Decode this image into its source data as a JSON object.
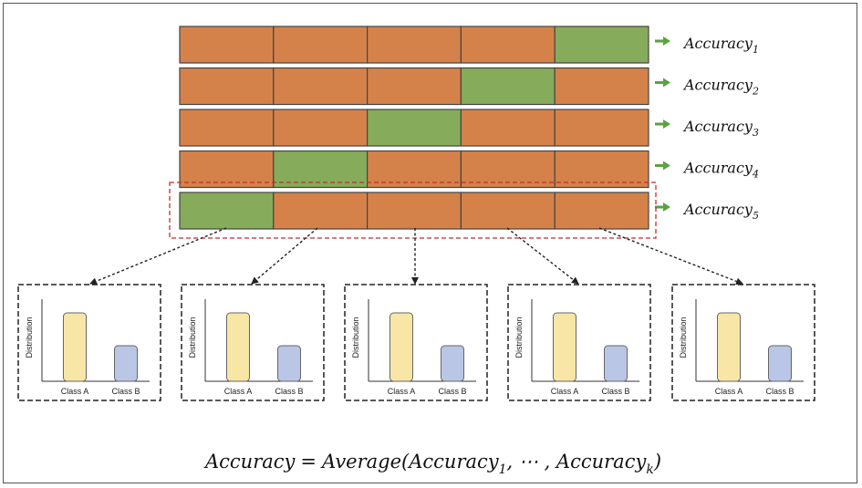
{
  "folds": [
    {
      "label": "Accuracy",
      "subscript": "1",
      "validation_index": 4
    },
    {
      "label": "Accuracy",
      "subscript": "2",
      "validation_index": 3
    },
    {
      "label": "Accuracy",
      "subscript": "3",
      "validation_index": 2
    },
    {
      "label": "Accuracy",
      "subscript": "4",
      "validation_index": 1
    },
    {
      "label": "Accuracy",
      "subscript": "5",
      "validation_index": 0
    }
  ],
  "segments_per_fold": 5,
  "highlighted_fold": 4,
  "colors": {
    "train": "#d5824a",
    "validation": "#86ab5a",
    "segment_border": "#444444",
    "arrow": "#5aa33e",
    "highlight_box": "#cc2a2a",
    "class_a": "#f7e6a6",
    "class_b": "#b9c6e6"
  },
  "distribution_panels": [
    {
      "ylabel": "Distribution",
      "classes": [
        "Class A",
        "Class B"
      ],
      "values": [
        1.0,
        0.52
      ]
    },
    {
      "ylabel": "Distribution",
      "classes": [
        "Class A",
        "Class B"
      ],
      "values": [
        1.0,
        0.52
      ]
    },
    {
      "ylabel": "Distribution",
      "classes": [
        "Class A",
        "Class B"
      ],
      "values": [
        1.0,
        0.52
      ]
    },
    {
      "ylabel": "Distribution",
      "classes": [
        "Class A",
        "Class B"
      ],
      "values": [
        1.0,
        0.52
      ]
    },
    {
      "ylabel": "Distribution",
      "classes": [
        "Class A",
        "Class B"
      ],
      "values": [
        1.0,
        0.52
      ]
    }
  ],
  "formula": {
    "lhs": "Accuracy",
    "equals": "=",
    "func": "Average(Accuracy",
    "sub1": "1",
    "middle": ", ⋯ , Accuracy",
    "subk": "k",
    "close": ")"
  }
}
